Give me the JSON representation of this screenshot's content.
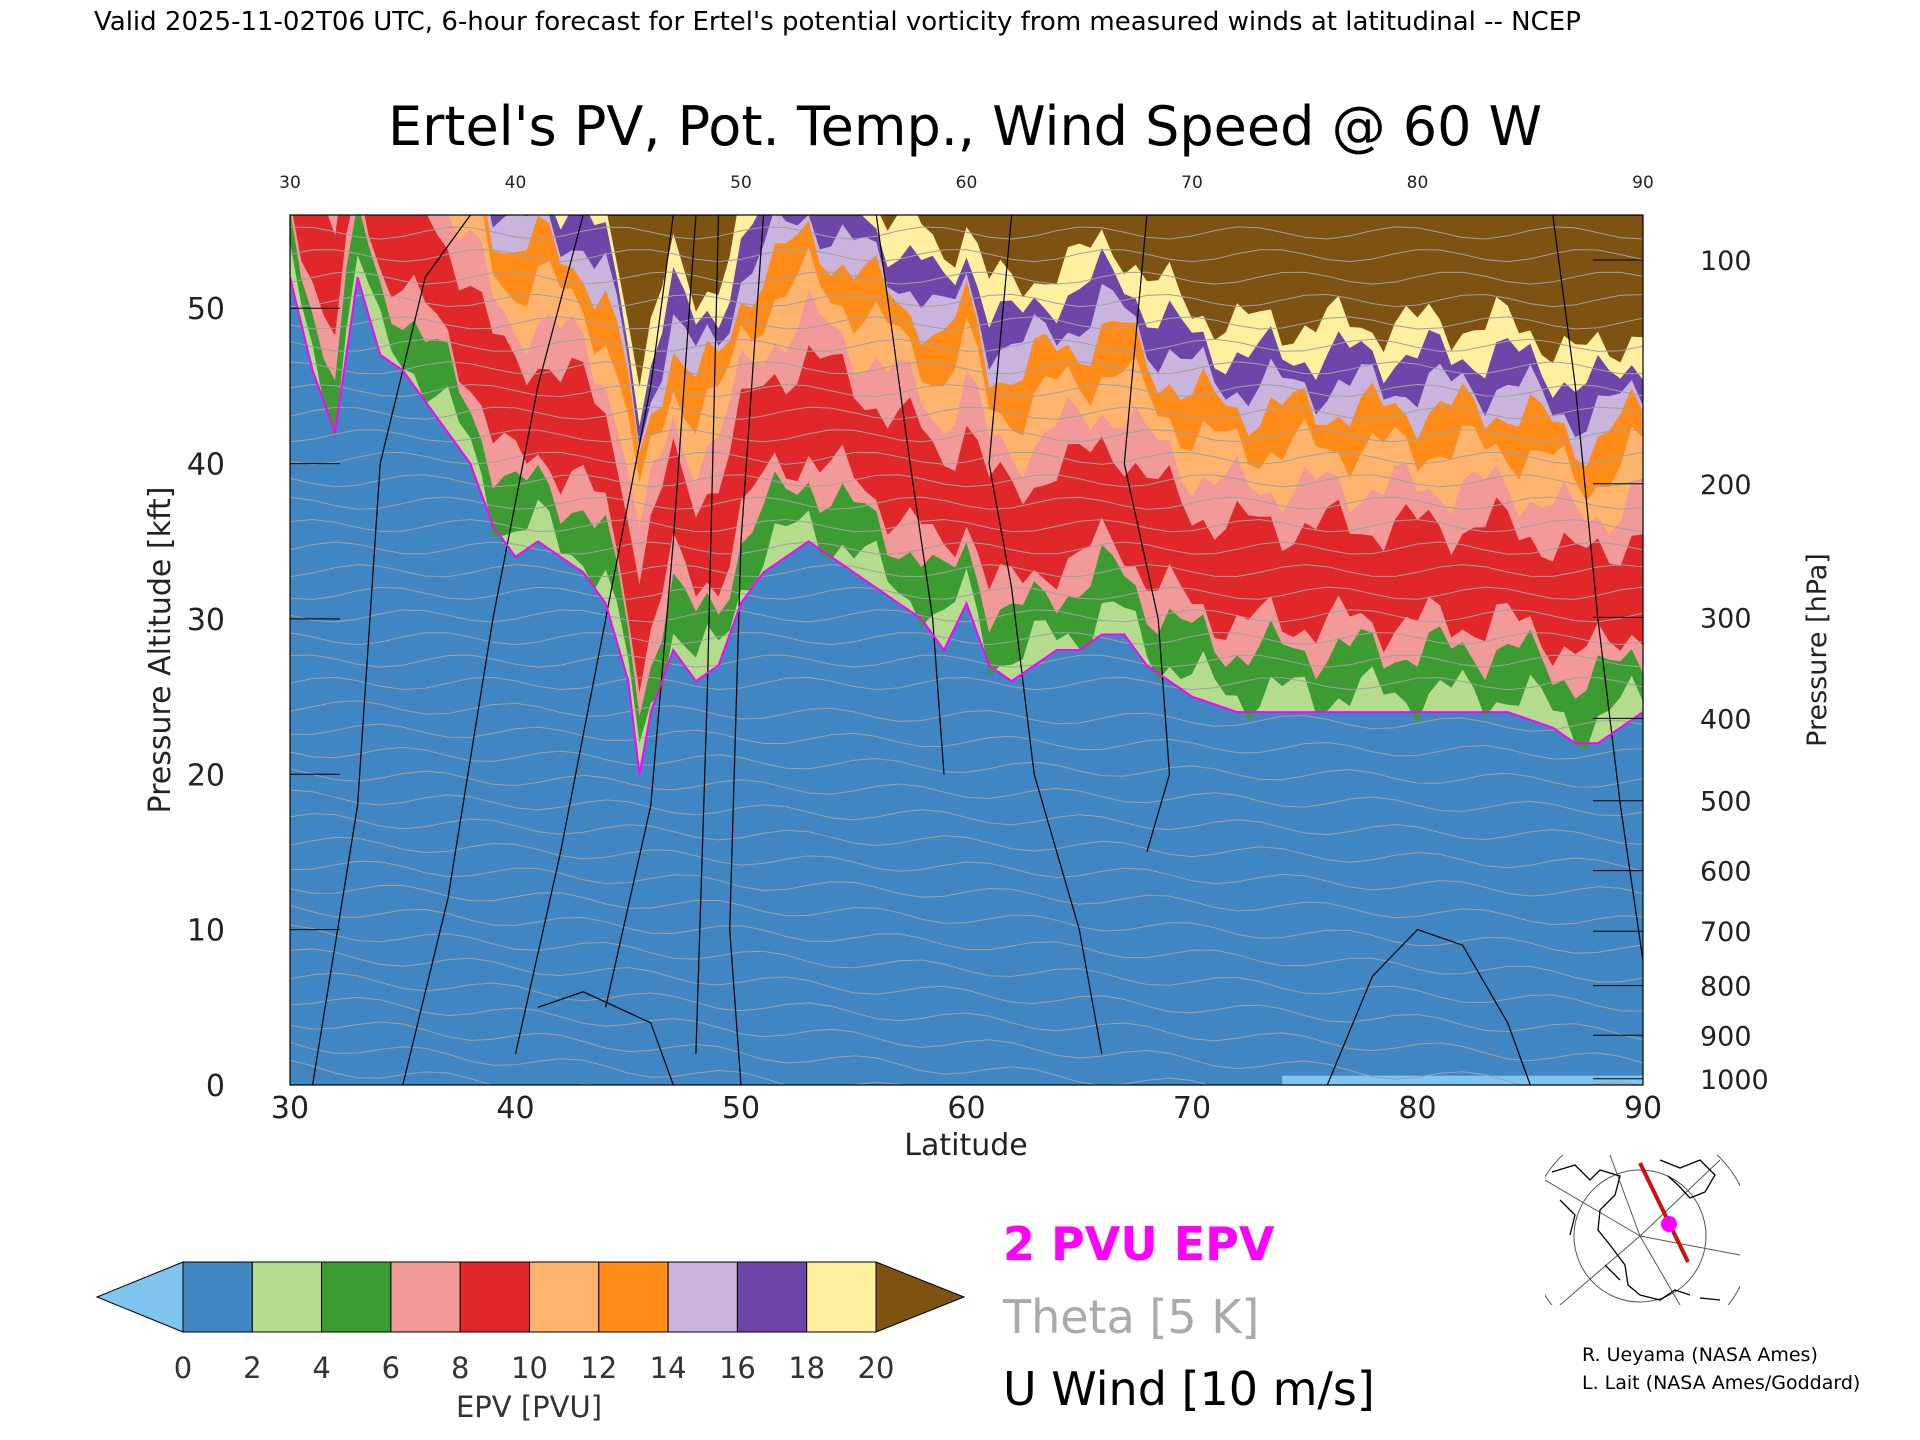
{
  "header": {
    "valid_line": "Valid 2025-11-02T06 UTC, 6-hour forecast for Ertel's potential vorticity from measured winds at latitudinal -- NCEP"
  },
  "chart_data": {
    "type": "heatmap",
    "title": "Ertel's PV, Pot. Temp., Wind Speed @ 60 W",
    "xlabel": "Latitude",
    "ylabel_left": "Pressure Altitude [kft]",
    "ylabel_right": "Pressure [hPa]",
    "xlim": [
      30,
      90
    ],
    "ylim": [
      0,
      56
    ],
    "x_ticks": [
      "30",
      "40",
      "50",
      "60",
      "70",
      "80",
      "90"
    ],
    "left_ticks": [
      "0",
      "10",
      "20",
      "30",
      "40",
      "50"
    ],
    "right_ticks": [
      {
        "label": "100",
        "kft": 53.1
      },
      {
        "label": "200",
        "kft": 38.7
      },
      {
        "label": "300",
        "kft": 30.1
      },
      {
        "label": "400",
        "kft": 23.6
      },
      {
        "label": "500",
        "kft": 18.3
      },
      {
        "label": "600",
        "kft": 13.8
      },
      {
        "label": "700",
        "kft": 9.9
      },
      {
        "label": "800",
        "kft": 6.4
      },
      {
        "label": "900",
        "kft": 3.2
      },
      {
        "label": "1000",
        "kft": 0.4
      }
    ],
    "epv_2pvu_tropopause_kft": {
      "lat": [
        30,
        31,
        32,
        33,
        34,
        35,
        36,
        37,
        38,
        39,
        40,
        41,
        42,
        43,
        44,
        45,
        45.5,
        46,
        47,
        48,
        49,
        50,
        51,
        52,
        53,
        54,
        55,
        56,
        57,
        58,
        59,
        60,
        61,
        62,
        63,
        64,
        65,
        66,
        67,
        68,
        70,
        72,
        74,
        76,
        78,
        80,
        82,
        84,
        86,
        87,
        88,
        89,
        90
      ],
      "kft": [
        52,
        46,
        42,
        52,
        47,
        46,
        44,
        42,
        40,
        36,
        34,
        35,
        34,
        33,
        31,
        26,
        20,
        24,
        28,
        26,
        27,
        31,
        33,
        34,
        35,
        34,
        33,
        32,
        31,
        30,
        28,
        31,
        27,
        26,
        27,
        28,
        28,
        29,
        29,
        27,
        25,
        24,
        24,
        24,
        24,
        24,
        24,
        24,
        23,
        22,
        22,
        23,
        24
      ]
    },
    "colorbar": {
      "label": "EPV [PVU]",
      "ticks": [
        "0",
        "2",
        "4",
        "6",
        "8",
        "10",
        "12",
        "14",
        "16",
        "18",
        "20"
      ],
      "bins": [
        {
          "from": 0,
          "to": 2,
          "color": "#3f86c3"
        },
        {
          "from": 2,
          "to": 4,
          "color": "#b4dc8c"
        },
        {
          "from": 4,
          "to": 6,
          "color": "#3c9c32"
        },
        {
          "from": 6,
          "to": 8,
          "color": "#f29a9a"
        },
        {
          "from": 8,
          "to": 10,
          "color": "#e0282b"
        },
        {
          "from": 10,
          "to": 12,
          "color": "#ffb46e"
        },
        {
          "from": 12,
          "to": 14,
          "color": "#ff8c19"
        },
        {
          "from": 14,
          "to": 16,
          "color": "#c8b4dc"
        },
        {
          "from": 16,
          "to": 18,
          "color": "#6e46aa"
        },
        {
          "from": 18,
          "to": 20,
          "color": "#fff0a0"
        }
      ],
      "under_color": "#80c4f0",
      "over_color": "#7e5210"
    },
    "legend": {
      "epv_line": "2 PVU EPV",
      "theta_line": "Theta [5 K]",
      "wind_line": "U Wind [10 m/s]"
    },
    "colors": {
      "tropopause": "#ff00ff",
      "theta": "#a0a0a0",
      "wind": "#000000",
      "map_track": "#cc1111"
    },
    "credits": [
      "R. Ueyama (NASA Ames)",
      "L. Lait (NASA Ames/Goddard)"
    ]
  }
}
